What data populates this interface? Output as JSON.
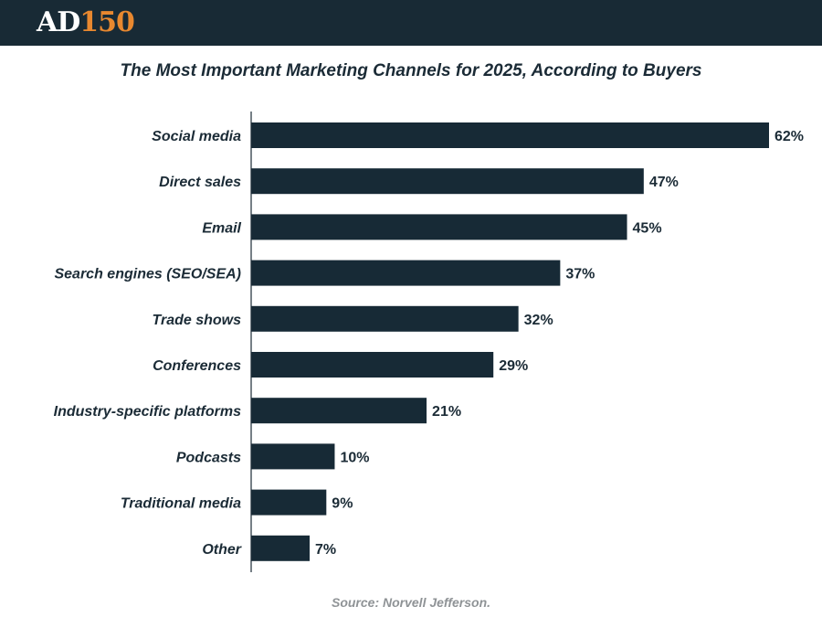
{
  "header": {
    "logo_part1": "AD",
    "logo_part2": "150"
  },
  "chart_data": {
    "type": "bar",
    "orientation": "horizontal",
    "title": "The Most Important Marketing Channels for 2025, According to Buyers",
    "categories": [
      "Social media",
      "Direct sales",
      "Email",
      "Search engines (SEO/SEA)",
      "Trade shows",
      "Conferences",
      "Industry-specific platforms",
      "Podcasts",
      "Traditional media",
      "Other"
    ],
    "values": [
      62,
      47,
      45,
      37,
      32,
      29,
      21,
      10,
      9,
      7
    ],
    "value_labels": [
      "62%",
      "47%",
      "45%",
      "37%",
      "32%",
      "29%",
      "21%",
      "10%",
      "9%",
      "7%"
    ],
    "unit": "%",
    "xlabel": "",
    "ylabel": "",
    "xlim": [
      0,
      62
    ],
    "bar_color": "#172a36",
    "source": "Source: Norvell Jefferson."
  }
}
